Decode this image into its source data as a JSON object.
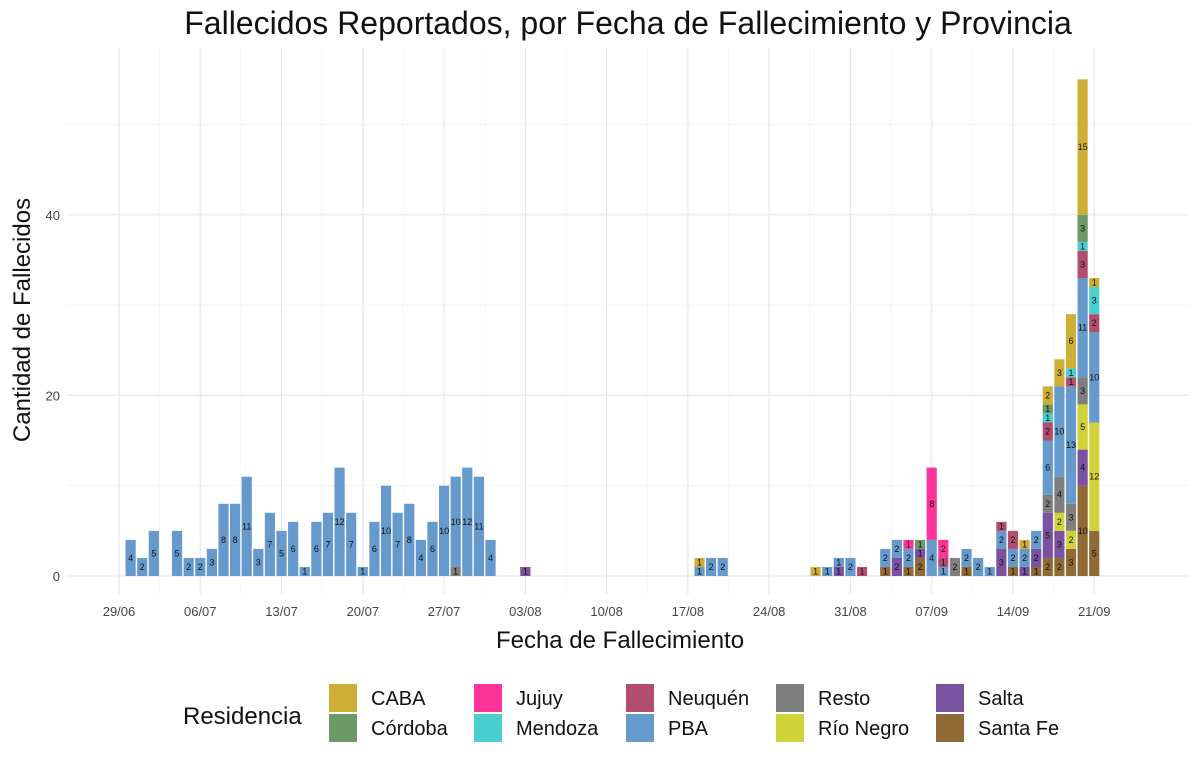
{
  "chart_data": {
    "type": "bar",
    "title": "Fallecidos Reportados, por Fecha de Fallecimiento y Provincia",
    "xlabel": "Fecha de Fallecimiento",
    "ylabel": "Cantidad de Fallecidos",
    "yticks": [
      0,
      20,
      40
    ],
    "ylim": [
      0,
      56
    ],
    "x_tick_labels": [
      "29/06",
      "06/07",
      "13/07",
      "20/07",
      "27/07",
      "03/08",
      "10/08",
      "17/08",
      "24/08",
      "31/08",
      "07/09",
      "14/09",
      "21/09"
    ],
    "x_tick_days": [
      0,
      7,
      14,
      21,
      28,
      35,
      42,
      49,
      56,
      63,
      70,
      77,
      84
    ],
    "x_range_days": [
      -4,
      88
    ],
    "day_zero": "29/06",
    "legend": {
      "title": "Residencia",
      "position": "bottom",
      "items": [
        {
          "name": "CABA",
          "color": "#CFAE38"
        },
        {
          "name": "Córdoba",
          "color": "#6B9A67"
        },
        {
          "name": "Jujuy",
          "color": "#FF3399"
        },
        {
          "name": "Mendoza",
          "color": "#4ACFD1"
        },
        {
          "name": "Neuquén",
          "color": "#B34D6E"
        },
        {
          "name": "PBA",
          "color": "#6699CC"
        },
        {
          "name": "Resto",
          "color": "#7F7F7F"
        },
        {
          "name": "Río Negro",
          "color": "#D1D13A"
        },
        {
          "name": "Salta",
          "color": "#7B52A1"
        },
        {
          "name": "Santa Fe",
          "color": "#8F6A35"
        }
      ]
    },
    "stack_order": [
      "Santa Fe",
      "Salta",
      "Río Negro",
      "Resto",
      "PBA",
      "Neuquén",
      "Mendoza",
      "Jujuy",
      "Córdoba",
      "CABA"
    ],
    "bars": [
      {
        "day": 1,
        "values": {
          "PBA": 4
        }
      },
      {
        "day": 2,
        "values": {
          "PBA": 2
        }
      },
      {
        "day": 3,
        "values": {
          "PBA": 5
        }
      },
      {
        "day": 5,
        "values": {
          "PBA": 5
        }
      },
      {
        "day": 6,
        "values": {
          "PBA": 2
        }
      },
      {
        "day": 7,
        "values": {
          "PBA": 2
        }
      },
      {
        "day": 8,
        "values": {
          "PBA": 3
        }
      },
      {
        "day": 9,
        "values": {
          "PBA": 8
        }
      },
      {
        "day": 10,
        "values": {
          "PBA": 8
        }
      },
      {
        "day": 11,
        "values": {
          "PBA": 11
        }
      },
      {
        "day": 12,
        "values": {
          "PBA": 3
        }
      },
      {
        "day": 13,
        "values": {
          "PBA": 7
        }
      },
      {
        "day": 14,
        "values": {
          "PBA": 5
        }
      },
      {
        "day": 15,
        "values": {
          "PBA": 6
        }
      },
      {
        "day": 16,
        "values": {
          "PBA": 1
        }
      },
      {
        "day": 17,
        "values": {
          "PBA": 6
        }
      },
      {
        "day": 18,
        "values": {
          "PBA": 7
        }
      },
      {
        "day": 19,
        "values": {
          "PBA": 12
        }
      },
      {
        "day": 20,
        "values": {
          "PBA": 7
        }
      },
      {
        "day": 21,
        "values": {
          "PBA": 1
        }
      },
      {
        "day": 22,
        "values": {
          "PBA": 6
        }
      },
      {
        "day": 23,
        "values": {
          "PBA": 10
        }
      },
      {
        "day": 24,
        "values": {
          "PBA": 7
        }
      },
      {
        "day": 25,
        "values": {
          "PBA": 8
        }
      },
      {
        "day": 26,
        "values": {
          "PBA": 4
        }
      },
      {
        "day": 27,
        "values": {
          "PBA": 6
        }
      },
      {
        "day": 28,
        "values": {
          "PBA": 10
        }
      },
      {
        "day": 29,
        "values": {
          "Resto": 1,
          "PBA": 10
        }
      },
      {
        "day": 30,
        "values": {
          "PBA": 12
        }
      },
      {
        "day": 31,
        "values": {
          "PBA": 11
        }
      },
      {
        "day": 32,
        "values": {
          "PBA": 4
        }
      },
      {
        "day": 35,
        "values": {
          "Salta": 1
        }
      },
      {
        "day": 50,
        "values": {
          "PBA": 1,
          "CABA": 1
        }
      },
      {
        "day": 51,
        "values": {
          "PBA": 2
        }
      },
      {
        "day": 52,
        "values": {
          "PBA": 2
        }
      },
      {
        "day": 60,
        "values": {
          "CABA": 1
        }
      },
      {
        "day": 61,
        "values": {
          "PBA": 1
        }
      },
      {
        "day": 62,
        "values": {
          "Salta": 1,
          "PBA": 1
        }
      },
      {
        "day": 63,
        "values": {
          "PBA": 2
        }
      },
      {
        "day": 64,
        "values": {
          "Neuquén": 1
        }
      },
      {
        "day": 66,
        "values": {
          "Santa Fe": 1,
          "PBA": 2
        }
      },
      {
        "day": 67,
        "values": {
          "Salta": 2,
          "PBA": 2
        }
      },
      {
        "day": 68,
        "values": {
          "Santa Fe": 1,
          "PBA": 2,
          "Jujuy": 1
        }
      },
      {
        "day": 69,
        "values": {
          "Santa Fe": 2,
          "Salta": 1,
          "Córdoba": 1
        }
      },
      {
        "day": 70,
        "values": {
          "PBA": 4,
          "Jujuy": 8
        }
      },
      {
        "day": 71,
        "values": {
          "PBA": 1,
          "Neuquén": 1,
          "Jujuy": 2
        }
      },
      {
        "day": 72,
        "values": {
          "Resto": 2
        }
      },
      {
        "day": 73,
        "values": {
          "Santa Fe": 1,
          "PBA": 2
        }
      },
      {
        "day": 74,
        "values": {
          "PBA": 2
        }
      },
      {
        "day": 75,
        "values": {
          "PBA": 1
        }
      },
      {
        "day": 76,
        "values": {
          "Salta": 3,
          "PBA": 2,
          "Neuquén": 1
        }
      },
      {
        "day": 77,
        "values": {
          "Santa Fe": 1,
          "PBA": 2,
          "Neuquén": 2
        }
      },
      {
        "day": 78,
        "values": {
          "Salta": 1,
          "PBA": 2,
          "CABA": 1
        }
      },
      {
        "day": 79,
        "values": {
          "Santa Fe": 1,
          "Salta": 2,
          "PBA": 2
        }
      },
      {
        "day": 80,
        "values": {
          "Santa Fe": 2,
          "Salta": 5,
          "Resto": 2,
          "PBA": 6,
          "Neuquén": 2,
          "Mendoza": 1,
          "Córdoba": 1,
          "CABA": 2
        }
      },
      {
        "day": 81,
        "values": {
          "Santa Fe": 2,
          "Salta": 3,
          "Río Negro": 2,
          "Resto": 4,
          "PBA": 10,
          "CABA": 3
        }
      },
      {
        "day": 82,
        "values": {
          "Santa Fe": 3,
          "Río Negro": 2,
          "Resto": 3,
          "PBA": 13,
          "Neuquén": 1,
          "Mendoza": 1,
          "CABA": 6
        }
      },
      {
        "day": 83,
        "values": {
          "Santa Fe": 10,
          "Salta": 4,
          "Río Negro": 5,
          "Resto": 3,
          "PBA": 11,
          "Neuquén": 3,
          "Mendoza": 1,
          "Córdoba": 3,
          "CABA": 15
        }
      },
      {
        "day": 84,
        "values": {
          "Santa Fe": 5,
          "Río Negro": 12,
          "PBA": 10,
          "Neuquén": 2,
          "Mendoza": 3,
          "CABA": 1
        }
      }
    ]
  }
}
